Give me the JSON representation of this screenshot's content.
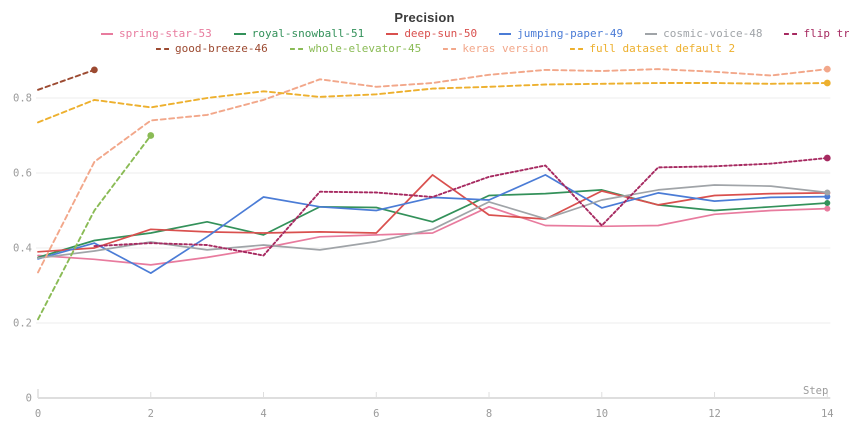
{
  "title": "Precision",
  "axes": {
    "x_label": "Step",
    "x_tick_labels": [
      "0",
      "2",
      "4",
      "6",
      "8",
      "10",
      "12",
      "14"
    ],
    "y_tick_labels": [
      "0",
      "0.2",
      "0.4",
      "0.6",
      "0.8"
    ]
  },
  "chart_data": {
    "type": "line",
    "title": "Precision",
    "xlabel": "Step",
    "ylabel": "",
    "x_ticks": [
      0,
      2,
      4,
      6,
      8,
      10,
      12,
      14
    ],
    "y_ticks": [
      0,
      0.2,
      0.4,
      0.6,
      0.8
    ],
    "xlim": [
      0,
      14
    ],
    "ylim": [
      0,
      1.06
    ],
    "grid": true,
    "legend_position": "top",
    "legend_rows": [
      [
        0,
        1,
        2,
        3,
        4,
        5
      ],
      [
        6,
        7,
        8,
        9
      ]
    ],
    "series": [
      {
        "name": "spring-star-53",
        "color": "#e87b9e",
        "style": "solid",
        "x_start": 0,
        "end_dot": true,
        "values": [
          0.38,
          0.37,
          0.355,
          0.375,
          0.4,
          0.43,
          0.435,
          0.44,
          0.51,
          0.46,
          0.458,
          0.46,
          0.49,
          0.5,
          0.505
        ]
      },
      {
        "name": "royal-snowball-51",
        "color": "#33915a",
        "style": "solid",
        "x_start": 0,
        "end_dot": true,
        "values": [
          0.375,
          0.42,
          0.44,
          0.47,
          0.435,
          0.51,
          0.508,
          0.47,
          0.54,
          0.545,
          0.555,
          0.515,
          0.5,
          0.51,
          0.52
        ]
      },
      {
        "name": "deep-sun-50",
        "color": "#d9504e",
        "style": "solid",
        "x_start": 0,
        "end_dot": true,
        "values": [
          0.39,
          0.4,
          0.45,
          0.443,
          0.44,
          0.443,
          0.44,
          0.595,
          0.488,
          0.477,
          0.552,
          0.515,
          0.54,
          0.545,
          0.547
        ]
      },
      {
        "name": "jumping-paper-49",
        "color": "#4b7cd6",
        "style": "solid",
        "x_start": 0,
        "end_dot": true,
        "values": [
          0.371,
          0.413,
          0.333,
          0.43,
          0.536,
          0.51,
          0.5,
          0.535,
          0.528,
          0.595,
          0.507,
          0.547,
          0.525,
          0.535,
          0.537
        ]
      },
      {
        "name": "cosmic-voice-48",
        "color": "#a0a4a8",
        "style": "solid",
        "x_start": 0,
        "end_dot": true,
        "values": [
          0.373,
          0.392,
          0.416,
          0.395,
          0.408,
          0.395,
          0.417,
          0.45,
          0.523,
          0.478,
          0.528,
          0.555,
          0.568,
          0.565,
          0.548
        ]
      },
      {
        "name": "flip train and valid sample",
        "color": "#a62960",
        "style": "dashed",
        "dash": "2.6,2.4",
        "x_start": 1,
        "end_dot": true,
        "values": [
          0.405,
          0.413,
          0.408,
          0.38,
          0.55,
          0.548,
          0.536,
          0.59,
          0.62,
          0.46,
          0.615,
          0.618,
          0.625,
          0.64
        ]
      },
      {
        "name": "good-breeze-46",
        "color": "#9c4a31",
        "style": "dashed",
        "dash": "4.5,3.5",
        "x_start": 0,
        "end_dot": true,
        "values": [
          0.822,
          0.875
        ]
      },
      {
        "name": "whole-elevator-45",
        "color": "#8abb55",
        "style": "dashed",
        "dash": "4.5,3.5",
        "x_start": 0,
        "end_dot": true,
        "values": [
          0.21,
          0.5,
          0.7
        ]
      },
      {
        "name": "keras version",
        "color": "#f2a78a",
        "style": "dashed",
        "dash": "5,3.5",
        "x_start": 0,
        "end_dot": true,
        "values": [
          0.335,
          0.63,
          0.74,
          0.755,
          0.795,
          0.85,
          0.83,
          0.84,
          0.862,
          0.875,
          0.872,
          0.877,
          0.87,
          0.86,
          0.877
        ]
      },
      {
        "name": "full dataset default 2",
        "color": "#edb02e",
        "style": "dashed",
        "dash": "5,3.5",
        "x_start": 0,
        "end_dot": true,
        "values": [
          0.735,
          0.795,
          0.775,
          0.8,
          0.818,
          0.803,
          0.81,
          0.825,
          0.83,
          0.836,
          0.838,
          0.84,
          0.84,
          0.838,
          0.84
        ]
      }
    ]
  },
  "colors": {
    "title_text": "#3b3b3b",
    "axis_text": "#9b9b9b",
    "gridline": "#ededed",
    "axis_line": "#dedede"
  }
}
